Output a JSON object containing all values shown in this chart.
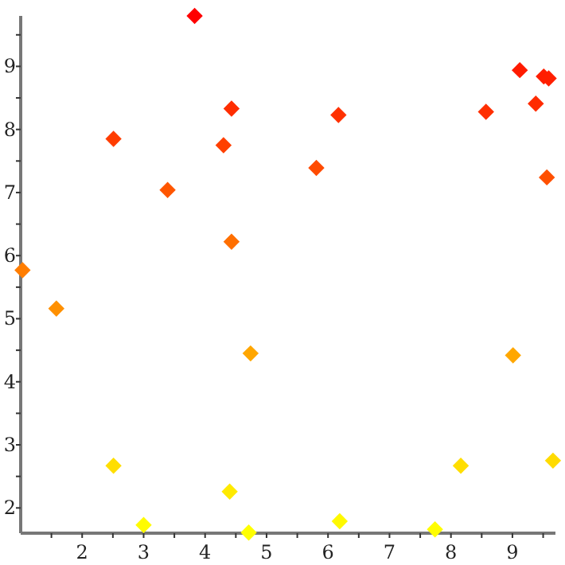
{
  "chart_data": {
    "type": "scatter",
    "marker": "diamond",
    "grid": false,
    "x": [
      1.03,
      1.58,
      2.51,
      2.51,
      3.0,
      3.39,
      3.83,
      4.3,
      4.43,
      4.43,
      4.4,
      4.74,
      4.71,
      6.17,
      5.81,
      6.19,
      7.74,
      8.16,
      8.57,
      9.12,
      9.38,
      9.51,
      9.59,
      9.56,
      9.01,
      9.66
    ],
    "values": [
      5.77,
      5.16,
      7.85,
      2.67,
      1.73,
      7.04,
      9.8,
      7.75,
      8.33,
      6.22,
      2.26,
      4.45,
      1.61,
      8.23,
      7.39,
      1.79,
      1.66,
      2.67,
      8.28,
      8.94,
      8.41,
      8.84,
      8.81,
      7.24,
      4.42,
      2.75
    ],
    "colors": [
      "#ff7d00",
      "#ff9000",
      "#ff3d00",
      "#ffde00",
      "#fffb00",
      "#ff5600",
      "#ff0000",
      "#ff4000",
      "#ff2e00",
      "#ff6f00",
      "#ffea00",
      "#ffa600",
      "#ffff00",
      "#ff3100",
      "#ff4b00",
      "#fff900",
      "#fffd00",
      "#ffde00",
      "#ff2f00",
      "#ff1b00",
      "#ff2b00",
      "#ff1e00",
      "#ff1f00",
      "#ff5000",
      "#ffa700",
      "#ffdb00"
    ],
    "xlim": [
      1,
      9.7
    ],
    "xticks": [
      {
        "value": 1.5,
        "label": null
      },
      2,
      {
        "value": 2.5,
        "label": null
      },
      3,
      {
        "value": 3.5,
        "label": null
      },
      4,
      {
        "value": 4.5,
        "label": null
      },
      5,
      {
        "value": 5.5,
        "label": null
      },
      6,
      {
        "value": 6.5,
        "label": null
      },
      7,
      {
        "value": 7.5,
        "label": null
      },
      8,
      {
        "value": 8.5,
        "label": null
      },
      9,
      {
        "value": 9.5,
        "label": null
      }
    ],
    "ylim": [
      1.6,
      9.8
    ],
    "yticks": [
      2,
      {
        "value": 2.5,
        "label": null
      },
      3,
      {
        "value": 3.5,
        "label": null
      },
      4,
      {
        "value": 4.5,
        "label": null
      },
      5,
      {
        "value": 5.5,
        "label": null
      },
      6,
      {
        "value": 6.5,
        "label": null
      },
      7,
      {
        "value": 7.5,
        "label": null
      },
      8,
      {
        "value": 8.5,
        "label": null
      },
      9,
      {
        "value": 9.5,
        "label": null
      }
    ]
  }
}
